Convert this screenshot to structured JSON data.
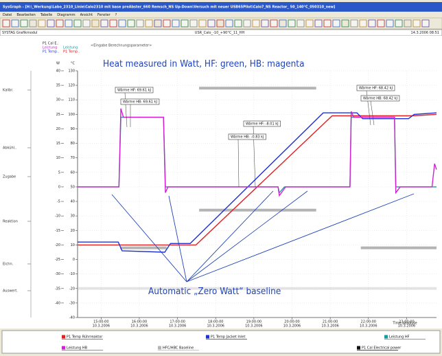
{
  "window": {
    "title": "SysGraph - [H:\\_Werkung\\Labo_2310_Linie\\Calo2310 mit base preAbster_660 Remsch_NS Up-Down\\Versuch mit neuer USB65Pilot\\Calo7_NS Reactor_ 50_140°C_050310_new]",
    "menu": [
      "Datei",
      "Bearbeiten",
      "Tabelle",
      "Diagramm",
      "Ansicht",
      "Fenster",
      "?"
    ],
    "status_left": "SYSTAG Grafikmodul",
    "status_center": "USR_Calo_-10_+90°C_11_HH",
    "status_right": "14.3.2006 08:51"
  },
  "chart_data": {
    "type": "line",
    "annotations": [
      "Heat measured in Watt, HF: green, HB: magenta",
      "Automatic „Zero Watt“ baseline"
    ],
    "parameter_hint": "<Eingabe Berechnungsparameter>",
    "axis_headers": [
      {
        "text": "P1 Cal E..",
        "color": "#222222"
      },
      {
        "text": "Leistung",
        "color": "#c030c0"
      },
      {
        "text": "Leistung",
        "color": "#1a9a9a"
      },
      {
        "text": "P1 Temp..",
        "color": "#3040d0"
      },
      {
        "text": "P1 Temp..",
        "color": "#e02020"
      }
    ],
    "ylabel": "W",
    "y2label": "°C",
    "phase_labels": [
      "Kalibr.",
      "Abkühl..",
      "Zugabe",
      "Reaktion",
      "Eichn.",
      "Auswert."
    ],
    "heat_labels": [
      "Wärme HF: 69.61 kJ",
      "Wärme HB: 69.61 kJ",
      "Wärme HF: -8.01 kJ",
      "Wärme HB: -0.83 kJ",
      "Wärme HF: 68.42 kJ",
      "Wärme HB: 68.42 kJ"
    ],
    "xlabel": "Time absolute",
    "xlim": [
      "14:23",
      "23:47"
    ],
    "xticks": [
      "15:00:00",
      "16:00:00",
      "17:00:00",
      "18:00:00",
      "19:00:00",
      "20:00:00",
      "21:00:00",
      "22:00:00",
      "23:00:00"
    ],
    "xtick_dates": [
      "10.3.2006",
      "10.3.2006",
      "10.3.2006",
      "10.3.2006",
      "10.3.2006",
      "10.3.2006",
      "10.3.2006",
      "10.3.2006",
      "10.3.2006"
    ],
    "ylim": [
      -45,
      40
    ],
    "yticks": [
      40,
      35,
      30,
      25,
      20,
      15,
      10,
      5,
      0,
      -5,
      -10,
      -15,
      -20,
      -25,
      -30,
      -35,
      -40
    ],
    "y2lim": [
      -40,
      130
    ],
    "y2ticks": [
      130,
      120,
      110,
      100,
      90,
      80,
      70,
      60,
      50,
      40,
      30,
      20,
      10,
      0,
      -10,
      -20,
      -30,
      -40
    ],
    "grid": true,
    "series": [
      {
        "name": "HFC/HBC Baseline",
        "color": "#b4b4b4",
        "x": [
          "15:30",
          "16:43",
          "17:34",
          "17:34",
          "20:38",
          "17:34",
          "17:34",
          "20:38",
          "21:48",
          "21:48",
          "23:47",
          "14:23",
          "14:23",
          "23:47"
        ],
        "values": [
          -21,
          -21,
          null,
          34,
          34,
          null,
          -8,
          -8,
          null,
          -21,
          -21,
          null,
          -35,
          -35
        ]
      },
      {
        "name": "P1 Temp Rührreaktor",
        "color": "#e02020",
        "axis": "y2",
        "x": [
          "14:23",
          "17:29",
          "21:03",
          "23:09",
          "23:47"
        ],
        "values": [
          10,
          10,
          99,
          99,
          100
        ]
      },
      {
        "name": "P1 Temp Jacket Inlet",
        "color": "#2030d0",
        "axis": "y2",
        "x": [
          "14:23",
          "15:27",
          "15:33",
          "16:40",
          "16:49",
          "17:20",
          "20:49",
          "21:42",
          "21:51",
          "23:03",
          "23:12",
          "23:47"
        ],
        "values": [
          12,
          12,
          6,
          5,
          11,
          11,
          101,
          101,
          97,
          97,
          100,
          101
        ]
      },
      {
        "name": "Leistung HF",
        "color": "#1a9a9a",
        "x": [
          "14:23",
          "15:28",
          "15:31",
          "16:38",
          "16:41",
          "19:38",
          "19:40",
          "19:48",
          "21:31",
          "21:33",
          "22:41",
          "22:43",
          "23:47"
        ],
        "values": [
          0,
          0,
          24,
          24,
          0,
          0,
          -2,
          0,
          0,
          24,
          24,
          0,
          0
        ]
      },
      {
        "name": "Leistung HB",
        "color": "#d020d0",
        "x": [
          "14:23",
          "15:28",
          "15:31",
          "15:35",
          "16:38",
          "16:41",
          "16:45",
          "19:38",
          "19:40",
          "19:50",
          "21:31",
          "21:33",
          "21:37",
          "22:41",
          "22:43",
          "22:50",
          "23:40",
          "23:44",
          "23:47"
        ],
        "values": [
          0,
          0,
          27,
          24,
          24,
          -2,
          0,
          0,
          -3,
          0,
          0,
          26,
          24,
          24,
          -2,
          0,
          0,
          8,
          6
        ]
      },
      {
        "name": "P1 Cal Electrical power",
        "color": "#111111",
        "x": [],
        "values": []
      }
    ]
  }
}
